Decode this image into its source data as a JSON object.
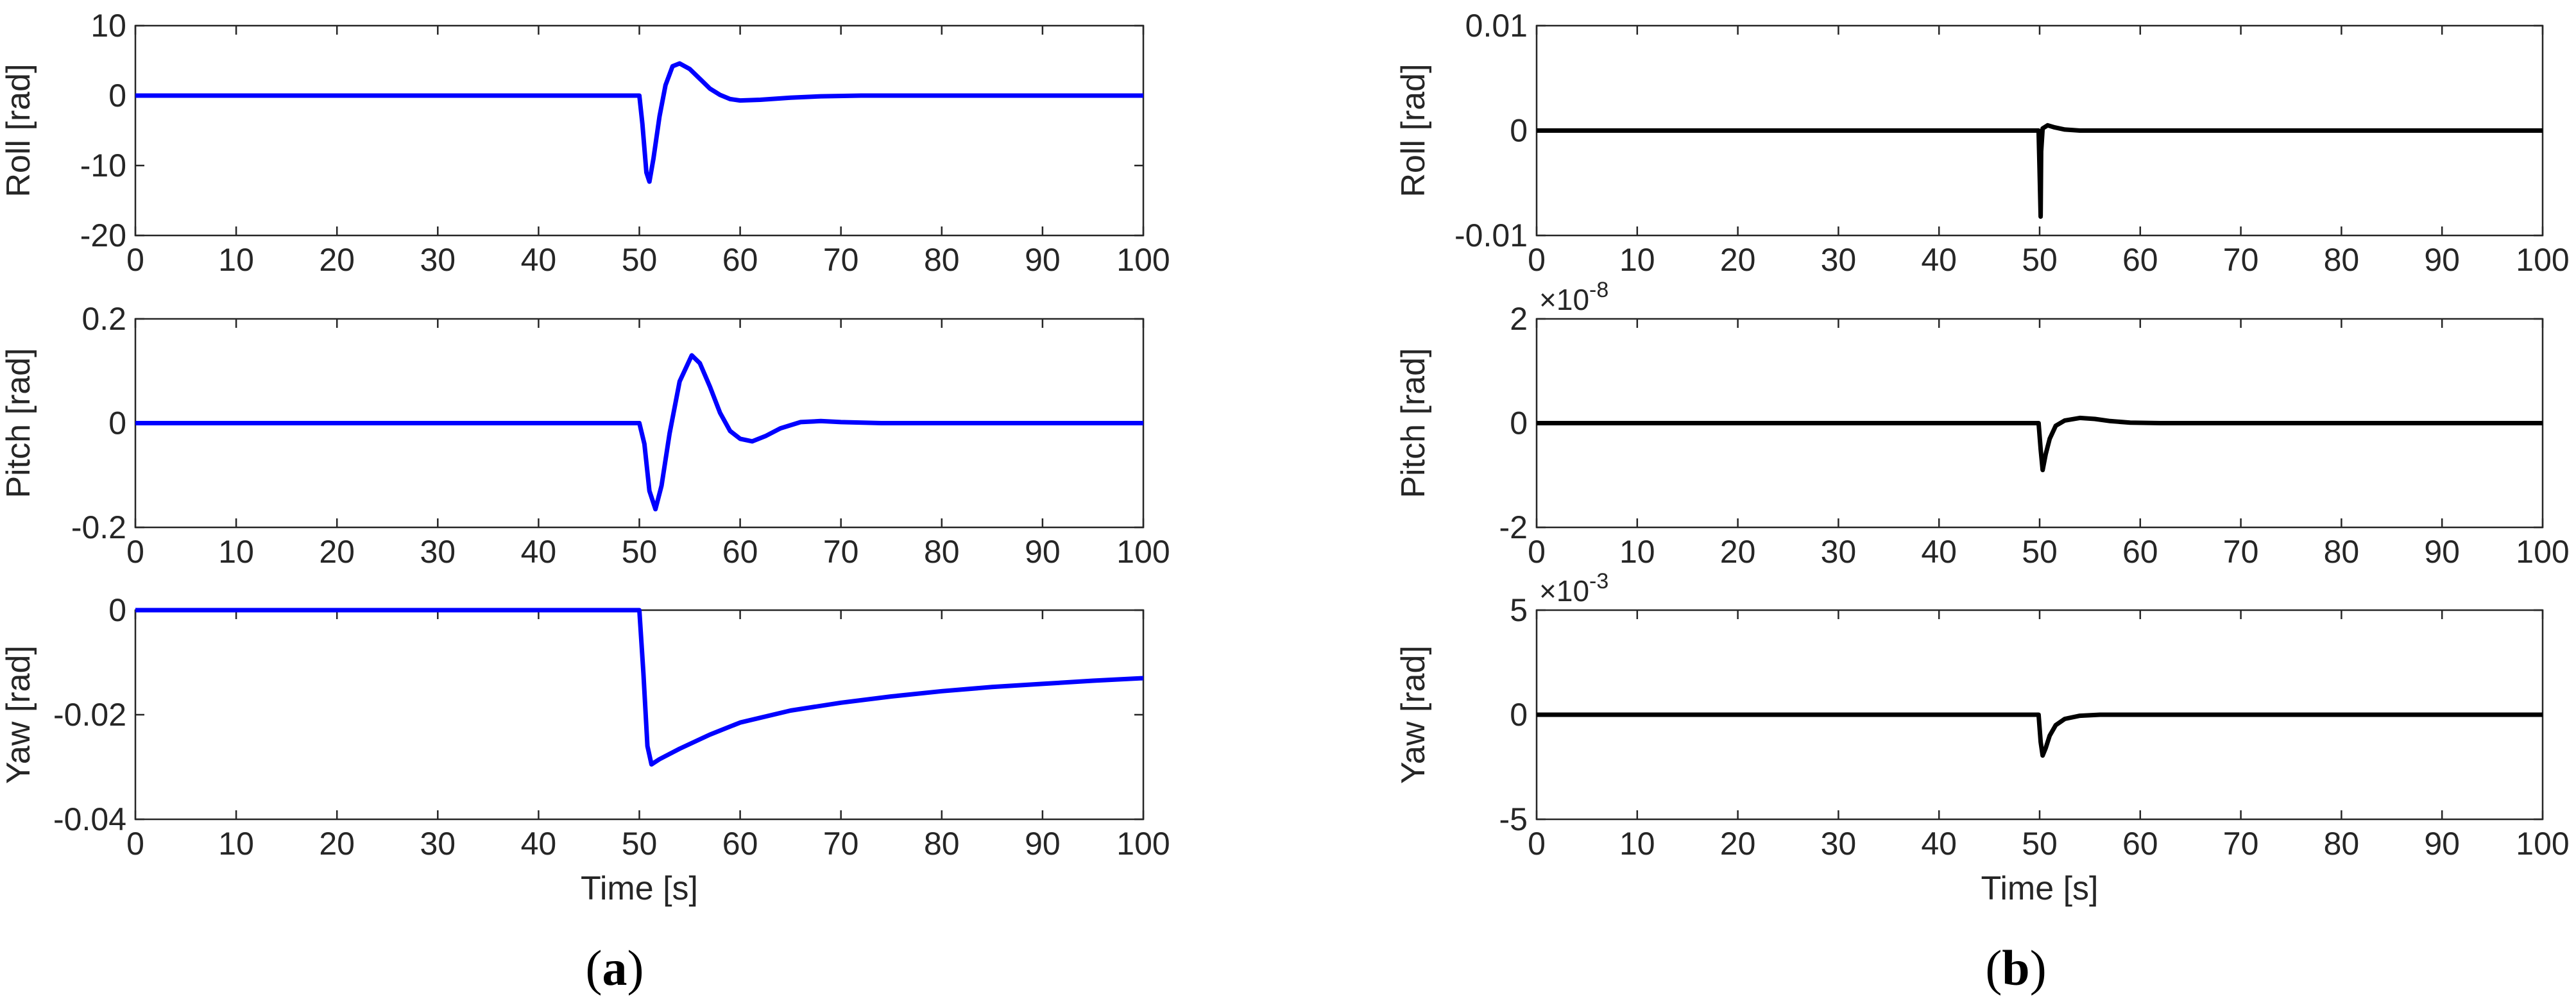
{
  "figure": {
    "panels": [
      {
        "id": "a",
        "letter": "a",
        "open": "(",
        "close": ")"
      },
      {
        "id": "b",
        "letter": "b",
        "open": "(",
        "close": ")"
      }
    ]
  },
  "chart_data": [
    {
      "type": "line",
      "panel": "a",
      "row": 1,
      "title": "",
      "xlabel": "",
      "ylabel": "Roll [rad]",
      "xlim": [
        0,
        100
      ],
      "ylim": [
        -20,
        10
      ],
      "xticks": [
        0,
        10,
        20,
        30,
        40,
        50,
        60,
        70,
        80,
        90,
        100
      ],
      "yticks": [
        10,
        0,
        -10,
        -20
      ],
      "ytick_labels": [
        "10",
        "0",
        "-10",
        "-20"
      ],
      "exponent": "",
      "color": "#0000ff",
      "series": [
        {
          "x": [
            0,
            50,
            50.3,
            50.7,
            51.0,
            51.4,
            52.0,
            52.6,
            53.3,
            54.0,
            55.0,
            56.0,
            57.0,
            58.0,
            59.0,
            60.0,
            62.0,
            65.0,
            68.0,
            72.0,
            80.0,
            100.0
          ],
          "y": [
            0,
            0,
            -4,
            -11,
            -12.3,
            -9,
            -3,
            1.5,
            4.2,
            4.6,
            3.8,
            2.4,
            1.0,
            0.1,
            -0.5,
            -0.7,
            -0.6,
            -0.3,
            -0.1,
            0.0,
            0.0,
            0.0
          ]
        }
      ]
    },
    {
      "type": "line",
      "panel": "a",
      "row": 2,
      "title": "",
      "xlabel": "",
      "ylabel": "Pitch [rad]",
      "xlim": [
        0,
        100
      ],
      "ylim": [
        -0.2,
        0.2
      ],
      "xticks": [
        0,
        10,
        20,
        30,
        40,
        50,
        60,
        70,
        80,
        90,
        100
      ],
      "yticks": [
        0.2,
        0,
        -0.2
      ],
      "ytick_labels": [
        "0.2",
        "0",
        "-0.2"
      ],
      "exponent": "",
      "color": "#0000ff",
      "series": [
        {
          "x": [
            0,
            50,
            50.5,
            51.0,
            51.6,
            52.2,
            53.0,
            54.0,
            55.2,
            56.0,
            57.0,
            58.0,
            59.0,
            60.0,
            61.2,
            62.5,
            64.0,
            66.0,
            68.0,
            70.0,
            74.0,
            80.0,
            100.0
          ],
          "y": [
            0,
            0,
            -0.04,
            -0.13,
            -0.165,
            -0.12,
            -0.02,
            0.08,
            0.13,
            0.115,
            0.07,
            0.02,
            -0.015,
            -0.03,
            -0.035,
            -0.025,
            -0.01,
            0.002,
            0.004,
            0.002,
            0.0,
            0.0,
            0.0
          ]
        }
      ]
    },
    {
      "type": "line",
      "panel": "a",
      "row": 3,
      "title": "",
      "xlabel": "Time [s]",
      "ylabel": "Yaw [rad]",
      "xlim": [
        0,
        100
      ],
      "ylim": [
        -0.04,
        0
      ],
      "xticks": [
        0,
        10,
        20,
        30,
        40,
        50,
        60,
        70,
        80,
        90,
        100
      ],
      "yticks": [
        0,
        -0.02,
        -0.04
      ],
      "ytick_labels": [
        "0",
        "-0.02",
        "-0.04"
      ],
      "exponent": "",
      "color": "#0000ff",
      "series": [
        {
          "x": [
            0,
            50,
            50.4,
            50.8,
            51.2,
            52,
            54,
            57,
            60,
            65,
            70,
            75,
            80,
            85,
            90,
            95,
            100
          ],
          "y": [
            0,
            0,
            -0.012,
            -0.026,
            -0.0295,
            -0.0285,
            -0.0265,
            -0.0238,
            -0.0215,
            -0.0192,
            -0.0177,
            -0.0165,
            -0.0155,
            -0.0147,
            -0.0141,
            -0.0135,
            -0.013
          ]
        }
      ]
    },
    {
      "type": "line",
      "panel": "b",
      "row": 1,
      "title": "",
      "xlabel": "",
      "ylabel": "Roll [rad]",
      "xlim": [
        0,
        100
      ],
      "ylim": [
        -0.01,
        0.01
      ],
      "xticks": [
        0,
        10,
        20,
        30,
        40,
        50,
        60,
        70,
        80,
        90,
        100
      ],
      "yticks": [
        0.01,
        0,
        -0.01
      ],
      "ytick_labels": [
        "0.01",
        "0",
        "-0.01"
      ],
      "exponent": "",
      "color": "#000000",
      "series": [
        {
          "x": [
            0,
            49.9,
            50.0,
            50.1,
            50.15,
            50.3,
            50.8,
            51.5,
            52.5,
            54.0,
            56.0,
            100.0
          ],
          "y": [
            0,
            0,
            -0.004,
            -0.0082,
            -0.002,
            0.0002,
            0.0005,
            0.0003,
            0.0001,
            0.0,
            0.0,
            0.0
          ]
        }
      ]
    },
    {
      "type": "line",
      "panel": "b",
      "row": 2,
      "title": "",
      "xlabel": "",
      "ylabel": "Pitch [rad]",
      "xlim": [
        0,
        100
      ],
      "ylim": [
        -2,
        2
      ],
      "xticks": [
        0,
        10,
        20,
        30,
        40,
        50,
        60,
        70,
        80,
        90,
        100
      ],
      "yticks": [
        2,
        0,
        -2
      ],
      "ytick_labels": [
        "2",
        "0",
        "-2"
      ],
      "exponent": "×10",
      "exponent_power": "-8",
      "color": "#000000",
      "series": [
        {
          "x": [
            0,
            49.9,
            50.1,
            50.3,
            50.6,
            51.0,
            51.6,
            52.5,
            54.0,
            55.5,
            57.0,
            59.0,
            62.0,
            100.0
          ],
          "y": [
            0,
            0,
            -0.5,
            -0.9,
            -0.6,
            -0.3,
            -0.05,
            0.05,
            0.1,
            0.08,
            0.04,
            0.01,
            0.0,
            0.0
          ]
        }
      ]
    },
    {
      "type": "line",
      "panel": "b",
      "row": 3,
      "title": "",
      "xlabel": "Time [s]",
      "ylabel": "Yaw [rad]",
      "xlim": [
        0,
        100
      ],
      "ylim": [
        -5,
        5
      ],
      "xticks": [
        0,
        10,
        20,
        30,
        40,
        50,
        60,
        70,
        80,
        90,
        100
      ],
      "yticks": [
        5,
        0,
        -5
      ],
      "ytick_labels": [
        "5",
        "0",
        "-5"
      ],
      "exponent": "×10",
      "exponent_power": "-3",
      "color": "#000000",
      "series": [
        {
          "x": [
            0,
            49.9,
            50.1,
            50.3,
            50.6,
            51.0,
            51.6,
            52.5,
            54.0,
            56.0,
            58.0,
            100.0
          ],
          "y": [
            0,
            0,
            -1.3,
            -1.95,
            -1.6,
            -1.0,
            -0.5,
            -0.2,
            -0.05,
            0.0,
            0.0,
            0.0
          ]
        }
      ]
    }
  ]
}
